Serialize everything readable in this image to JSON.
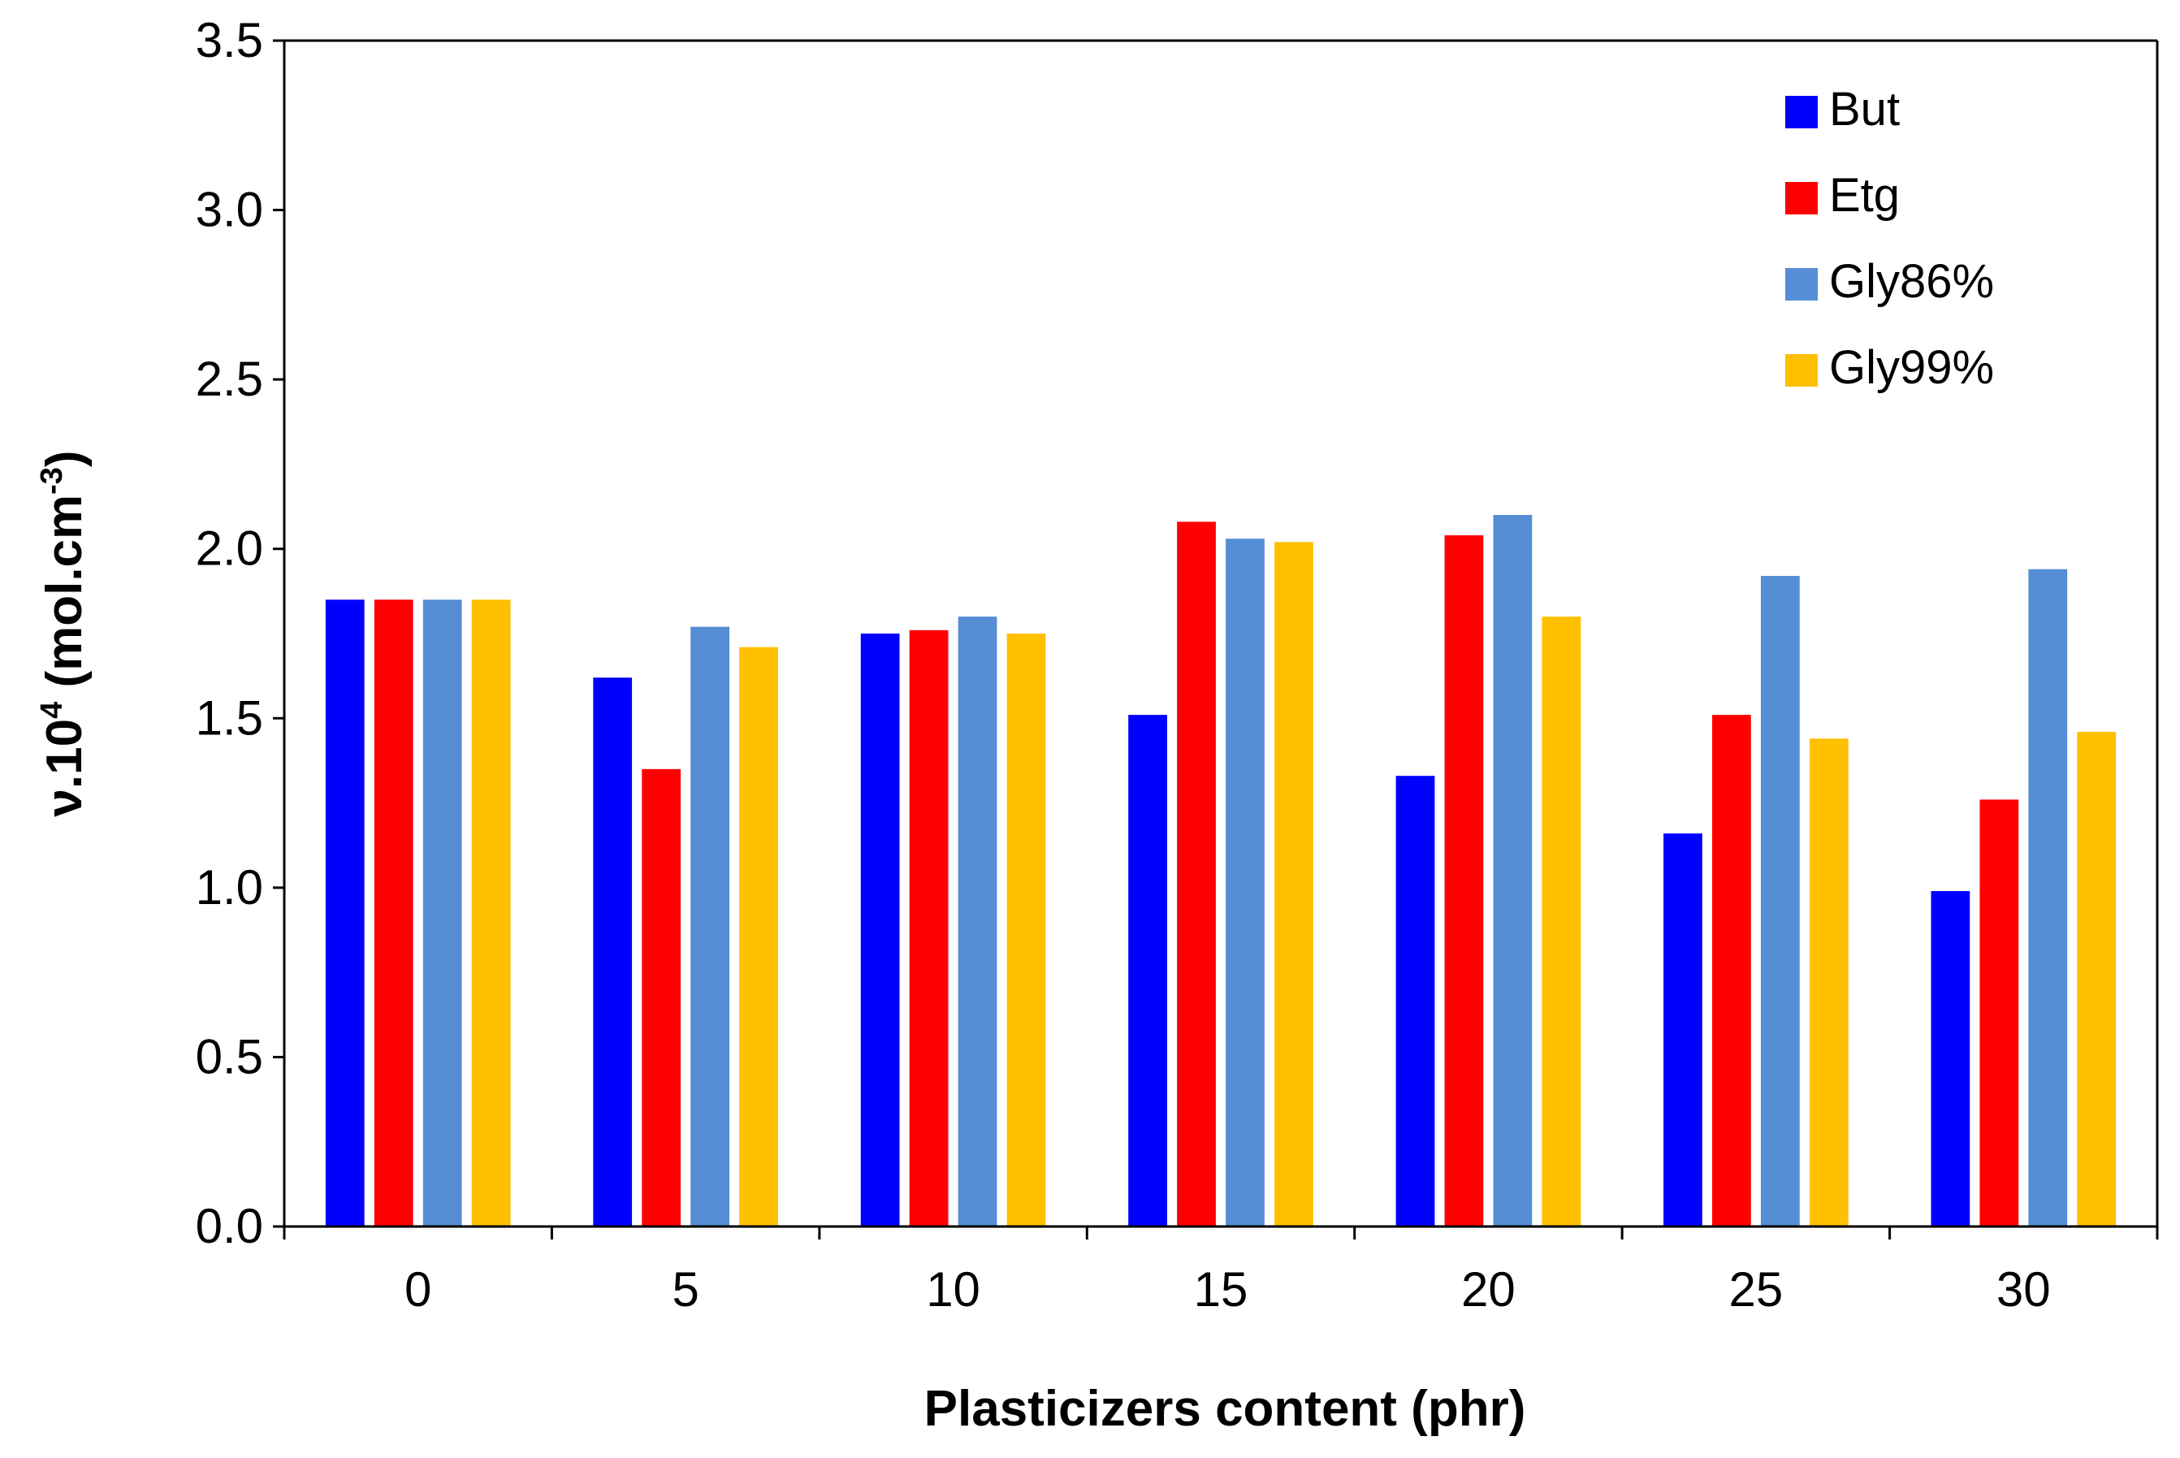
{
  "chart_data": {
    "type": "bar",
    "title": "",
    "xlabel": "Plasticizers content (phr)",
    "ylabel_main": "ν.10",
    "ylabel_sup": "4",
    "ylabel_unit": " (mol.cm",
    "ylabel_unit_sup": "-3",
    "ylabel_close": ")",
    "ylim": [
      0,
      3.5
    ],
    "yticks": [
      0,
      0.5,
      1,
      1.5,
      2,
      2.5,
      3,
      3.5
    ],
    "ytick_labels": [
      "0.0",
      "0.5",
      "1.0",
      "1.5",
      "2.0",
      "2.5",
      "3.0",
      "3.5"
    ],
    "categories": [
      "0",
      "5",
      "10",
      "15",
      "20",
      "25",
      "30"
    ],
    "legend_position": "top-right",
    "series": [
      {
        "name": "But",
        "color": "#0000FF",
        "values": [
          1.85,
          1.62,
          1.75,
          1.51,
          1.33,
          1.16,
          0.99
        ]
      },
      {
        "name": "Etg",
        "color": "#FF0000",
        "values": [
          1.85,
          1.35,
          1.76,
          2.08,
          2.04,
          1.51,
          1.26
        ]
      },
      {
        "name": "Gly86%",
        "color": "#558ED5",
        "values": [
          1.85,
          1.77,
          1.8,
          2.03,
          2.1,
          1.92,
          1.94
        ]
      },
      {
        "name": "Gly99%",
        "color": "#FFC000",
        "values": [
          1.85,
          1.71,
          1.75,
          2.02,
          1.8,
          1.44,
          1.46
        ]
      }
    ]
  }
}
